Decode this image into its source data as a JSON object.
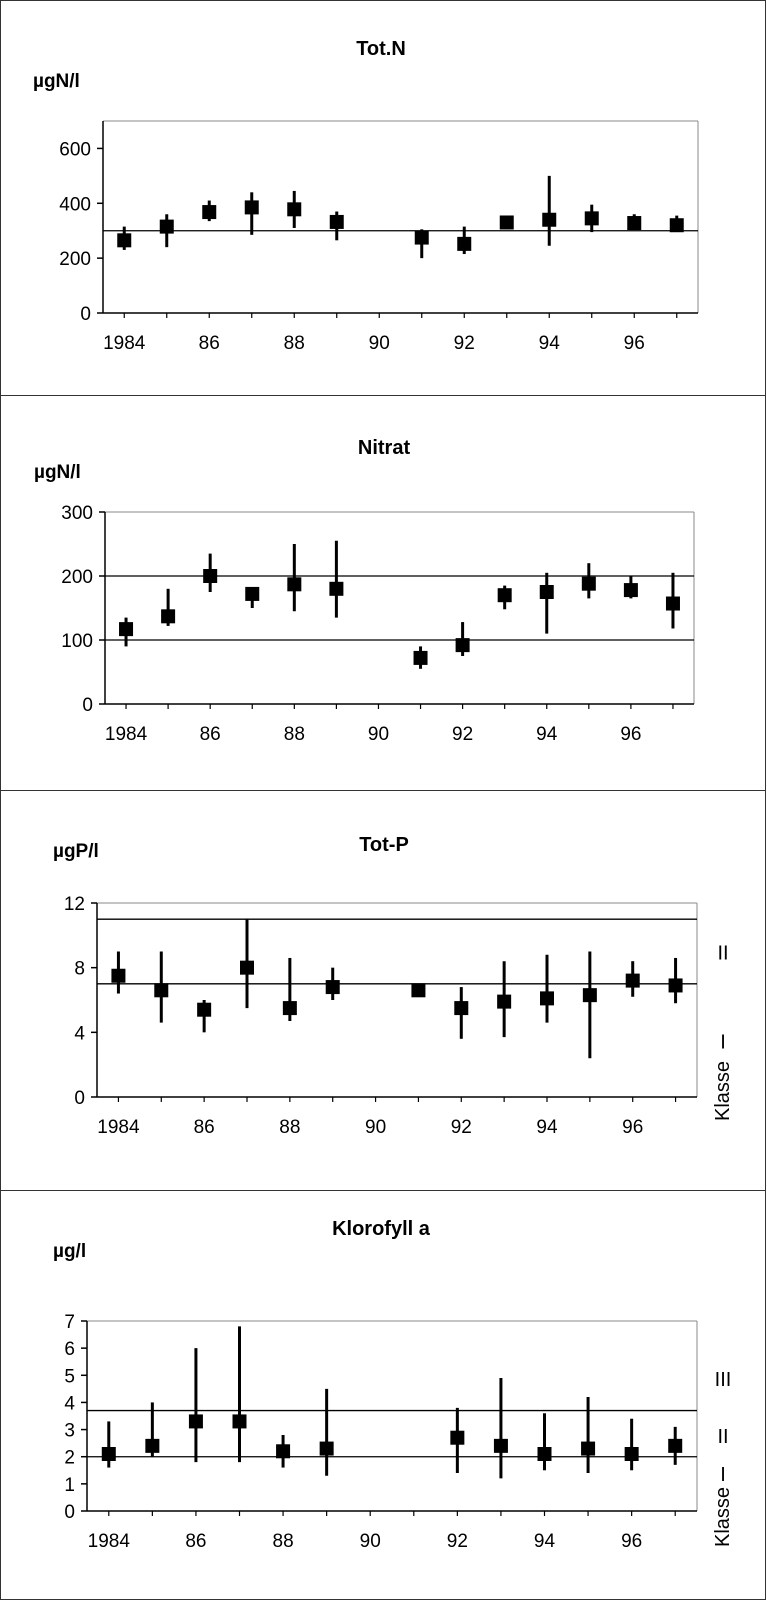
{
  "chart_data": [
    {
      "type": "scatter",
      "title": "Tot.N",
      "ylabel": "µgN/l",
      "ylim": [
        0,
        700
      ],
      "yticks": [
        0,
        200,
        400,
        600
      ],
      "xlim": [
        1983.5,
        1997.5
      ],
      "xtick_values": [
        1984,
        1986,
        1988,
        1990,
        1992,
        1994,
        1996
      ],
      "xtick_labels": [
        "1984",
        "86",
        "88",
        "90",
        "92",
        "94",
        "96"
      ],
      "reference_lines": [
        300
      ],
      "class_labels": [],
      "class_title": "",
      "points": [
        {
          "x": 1984,
          "y": 265,
          "low": 230,
          "high": 315
        },
        {
          "x": 1985,
          "y": 315,
          "low": 240,
          "high": 360
        },
        {
          "x": 1986,
          "y": 368,
          "low": 335,
          "high": 410
        },
        {
          "x": 1987,
          "y": 385,
          "low": 285,
          "high": 440
        },
        {
          "x": 1988,
          "y": 378,
          "low": 310,
          "high": 445
        },
        {
          "x": 1989,
          "y": 332,
          "low": 265,
          "high": 370
        },
        {
          "x": 1991,
          "y": 275,
          "low": 200,
          "high": 305
        },
        {
          "x": 1992,
          "y": 252,
          "low": 215,
          "high": 315
        },
        {
          "x": 1993,
          "y": 330,
          "low": 315,
          "high": 345
        },
        {
          "x": 1994,
          "y": 340,
          "low": 245,
          "high": 500
        },
        {
          "x": 1995,
          "y": 345,
          "low": 295,
          "high": 395
        },
        {
          "x": 1996,
          "y": 328,
          "low": 310,
          "high": 360
        },
        {
          "x": 1997,
          "y": 320,
          "low": 300,
          "high": 355
        }
      ]
    },
    {
      "type": "scatter",
      "title": "Nitrat",
      "ylabel": "µgN/l",
      "ylim": [
        0,
        300
      ],
      "yticks": [
        0,
        100,
        200,
        300
      ],
      "xlim": [
        1983.5,
        1997.5
      ],
      "xtick_values": [
        1984,
        1986,
        1988,
        1990,
        1992,
        1994,
        1996
      ],
      "xtick_labels": [
        "1984",
        "86",
        "88",
        "90",
        "92",
        "94",
        "96"
      ],
      "reference_lines": [
        100,
        200
      ],
      "class_labels": [],
      "class_title": "",
      "points": [
        {
          "x": 1984,
          "y": 117,
          "low": 90,
          "high": 135
        },
        {
          "x": 1985,
          "y": 137,
          "low": 122,
          "high": 180
        },
        {
          "x": 1986,
          "y": 200,
          "low": 175,
          "high": 235
        },
        {
          "x": 1987,
          "y": 172,
          "low": 150,
          "high": 182
        },
        {
          "x": 1988,
          "y": 187,
          "low": 145,
          "high": 250
        },
        {
          "x": 1989,
          "y": 180,
          "low": 135,
          "high": 255
        },
        {
          "x": 1991,
          "y": 72,
          "low": 55,
          "high": 90
        },
        {
          "x": 1992,
          "y": 92,
          "low": 75,
          "high": 128
        },
        {
          "x": 1993,
          "y": 170,
          "low": 148,
          "high": 185
        },
        {
          "x": 1994,
          "y": 175,
          "low": 110,
          "high": 205
        },
        {
          "x": 1995,
          "y": 188,
          "low": 165,
          "high": 220
        },
        {
          "x": 1996,
          "y": 178,
          "low": 165,
          "high": 200
        },
        {
          "x": 1997,
          "y": 157,
          "low": 118,
          "high": 205
        }
      ]
    },
    {
      "type": "scatter",
      "title": "Tot-P",
      "ylabel": "µgP/l",
      "ylim": [
        0,
        12
      ],
      "yticks": [
        0,
        4,
        8,
        12
      ],
      "xlim": [
        1983.5,
        1997.5
      ],
      "xtick_values": [
        1984,
        1986,
        1988,
        1990,
        1992,
        1994,
        1996
      ],
      "xtick_labels": [
        "1984",
        "86",
        "88",
        "90",
        "92",
        "94",
        "96"
      ],
      "reference_lines": [
        7,
        11
      ],
      "class_labels": [
        {
          "label": "II",
          "y": 9
        },
        {
          "label": "I",
          "y": 3.5
        }
      ],
      "class_title": "Klasse",
      "points": [
        {
          "x": 1984,
          "y": 7.5,
          "low": 6.4,
          "high": 9.0
        },
        {
          "x": 1985,
          "y": 6.6,
          "low": 4.6,
          "high": 9.0
        },
        {
          "x": 1986,
          "y": 5.4,
          "low": 4.0,
          "high": 6.0
        },
        {
          "x": 1987,
          "y": 8.0,
          "low": 5.5,
          "high": 11.0
        },
        {
          "x": 1988,
          "y": 5.5,
          "low": 4.7,
          "high": 8.6
        },
        {
          "x": 1989,
          "y": 6.8,
          "low": 6.0,
          "high": 8.0
        },
        {
          "x": 1991,
          "y": 6.6,
          "low": 6.2,
          "high": 7.0
        },
        {
          "x": 1992,
          "y": 5.5,
          "low": 3.6,
          "high": 6.8
        },
        {
          "x": 1993,
          "y": 5.9,
          "low": 3.7,
          "high": 8.4
        },
        {
          "x": 1994,
          "y": 6.1,
          "low": 4.6,
          "high": 8.8
        },
        {
          "x": 1995,
          "y": 6.3,
          "low": 2.4,
          "high": 9.0
        },
        {
          "x": 1996,
          "y": 7.2,
          "low": 6.2,
          "high": 8.4
        },
        {
          "x": 1997,
          "y": 6.9,
          "low": 5.8,
          "high": 8.6
        }
      ]
    },
    {
      "type": "scatter",
      "title": "Klorofyll a",
      "ylabel": "µg/l",
      "ylim": [
        0,
        7
      ],
      "yticks": [
        0,
        1,
        2,
        3,
        4,
        5,
        6,
        7
      ],
      "xlim": [
        1983.5,
        1997.5
      ],
      "xtick_values": [
        1984,
        1986,
        1988,
        1990,
        1992,
        1994,
        1996
      ],
      "xtick_labels": [
        "1984",
        "86",
        "88",
        "90",
        "92",
        "94",
        "96"
      ],
      "reference_lines": [
        2,
        3.7
      ],
      "class_labels": [
        {
          "label": "III",
          "y": 4.9
        },
        {
          "label": "II",
          "y": 2.8
        },
        {
          "label": "I",
          "y": 1.4
        }
      ],
      "class_title": "Klasse",
      "points": [
        {
          "x": 1984,
          "y": 2.1,
          "low": 1.6,
          "high": 3.3
        },
        {
          "x": 1985,
          "y": 2.4,
          "low": 2.0,
          "high": 4.0
        },
        {
          "x": 1986,
          "y": 3.3,
          "low": 1.8,
          "high": 6.0
        },
        {
          "x": 1987,
          "y": 3.3,
          "low": 1.8,
          "high": 6.8
        },
        {
          "x": 1988,
          "y": 2.2,
          "low": 1.6,
          "high": 2.8
        },
        {
          "x": 1989,
          "y": 2.3,
          "low": 1.3,
          "high": 4.5
        },
        {
          "x": 1992,
          "y": 2.7,
          "low": 1.4,
          "high": 3.8
        },
        {
          "x": 1993,
          "y": 2.4,
          "low": 1.2,
          "high": 4.9
        },
        {
          "x": 1994,
          "y": 2.1,
          "low": 1.5,
          "high": 3.6
        },
        {
          "x": 1995,
          "y": 2.3,
          "low": 1.4,
          "high": 4.2
        },
        {
          "x": 1996,
          "y": 2.1,
          "low": 1.5,
          "high": 3.4
        },
        {
          "x": 1997,
          "y": 2.4,
          "low": 1.7,
          "high": 3.1
        }
      ]
    }
  ]
}
